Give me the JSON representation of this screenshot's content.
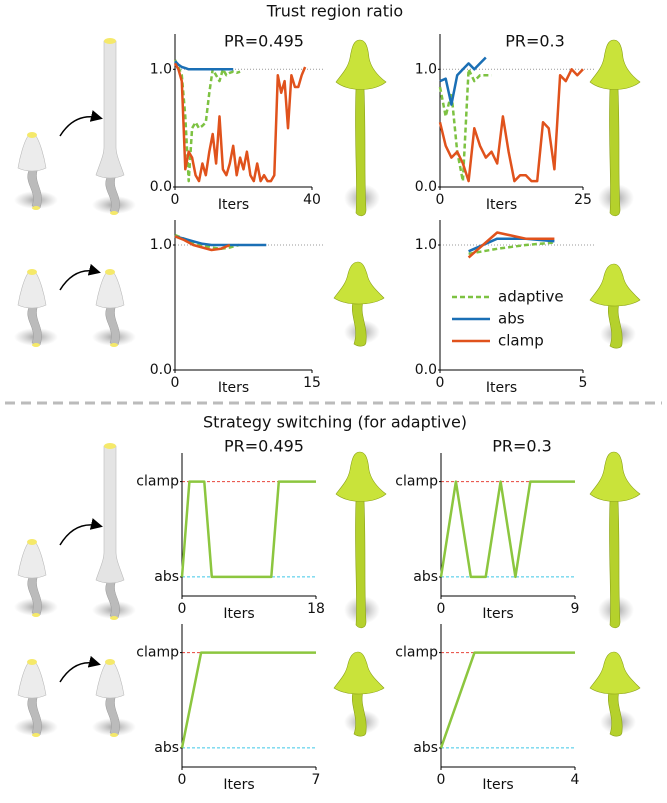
{
  "sections": [
    "Trust region ratio",
    "Strategy switching (for adaptive)"
  ],
  "chart_data": [
    {
      "type": "line",
      "title": "PR=0.495",
      "x_label": "Iters",
      "xlim": [
        0,
        40
      ],
      "xticks": [
        0,
        40
      ],
      "ylim": [
        0,
        1.3
      ],
      "yticks": [
        {
          "value": 0,
          "label": "0.0"
        },
        {
          "value": 1,
          "label": "1.0"
        }
      ],
      "ref_line": 1,
      "series": [
        {
          "style": "dashed",
          "color": "#7dc242",
          "x": [
            0,
            1,
            2,
            3,
            4,
            5,
            6,
            7,
            8,
            9,
            10,
            11,
            12,
            13,
            14,
            15,
            16,
            17,
            18,
            19
          ],
          "values": [
            1.08,
            1.02,
            0.95,
            0.6,
            0.05,
            0.5,
            0.55,
            0.5,
            0.52,
            0.55,
            0.8,
            1.0,
            0.95,
            0.9,
            1.0,
            0.95,
            0.97,
            0.98,
            0.97,
            0.98
          ]
        },
        {
          "style": "solid",
          "color": "#1a6fb5",
          "x": [
            0,
            1,
            2,
            3,
            4,
            5,
            6,
            7,
            8,
            9,
            10,
            11,
            12,
            13,
            14,
            15,
            16,
            17
          ],
          "values": [
            1.07,
            1.04,
            1.02,
            1.01,
            1.0,
            1.0,
            1.0,
            1.0,
            1.0,
            1.0,
            1.0,
            1.0,
            1.0,
            1.0,
            1.0,
            1.0,
            1.0,
            1.0
          ]
        },
        {
          "style": "solid",
          "color": "#e0521c",
          "x": [
            0,
            1,
            2,
            3,
            4,
            5,
            6,
            7,
            8,
            9,
            10,
            11,
            12,
            13,
            14,
            15,
            16,
            17,
            18,
            19,
            20,
            21,
            22,
            23,
            24,
            25,
            26,
            27,
            28,
            29,
            30,
            31,
            32,
            33,
            34,
            35,
            36,
            37,
            38
          ],
          "values": [
            1.05,
            1.0,
            0.9,
            0.15,
            0.3,
            0.25,
            0.1,
            0.05,
            0.2,
            0.1,
            0.3,
            0.45,
            0.2,
            0.6,
            0.15,
            0.1,
            0.2,
            0.35,
            0.1,
            0.25,
            0.15,
            0.3,
            0.1,
            0.05,
            0.2,
            0.05,
            0.1,
            0.05,
            0.05,
            0.1,
            0.95,
            0.8,
            0.9,
            0.5,
            0.95,
            0.85,
            0.85,
            0.95,
            1.02
          ]
        }
      ]
    },
    {
      "type": "line",
      "title": "PR=0.3",
      "x_label": "Iters",
      "xlim": [
        0,
        25
      ],
      "xticks": [
        0,
        25
      ],
      "ylim": [
        0,
        1.3
      ],
      "yticks": [
        {
          "value": 0,
          "label": "0.0"
        },
        {
          "value": 1,
          "label": "1.0"
        }
      ],
      "ref_line": 1,
      "series": [
        {
          "style": "dashed",
          "color": "#7dc242",
          "x": [
            0,
            1,
            2,
            3,
            4,
            5,
            6,
            7,
            8,
            9
          ],
          "values": [
            0.85,
            0.6,
            0.8,
            0.3,
            0.05,
            1.0,
            0.9,
            0.95,
            0.95,
            0.95
          ]
        },
        {
          "style": "solid",
          "color": "#1a6fb5",
          "x": [
            0,
            1,
            2,
            3,
            4,
            5,
            6,
            7,
            8
          ],
          "values": [
            0.9,
            0.92,
            0.7,
            0.95,
            1.0,
            1.05,
            1.0,
            1.05,
            1.1
          ]
        },
        {
          "style": "solid",
          "color": "#e0521c",
          "x": [
            0,
            1,
            2,
            3,
            4,
            5,
            6,
            7,
            8,
            9,
            10,
            11,
            12,
            13,
            14,
            15,
            16,
            17,
            18,
            19,
            20,
            21,
            22,
            23,
            24,
            25
          ],
          "values": [
            0.55,
            0.35,
            0.25,
            0.3,
            0.2,
            0.05,
            0.5,
            0.35,
            0.25,
            0.3,
            0.2,
            0.6,
            0.3,
            0.05,
            0.1,
            0.1,
            0.05,
            0.05,
            0.55,
            0.5,
            0.15,
            0.95,
            0.9,
            1.0,
            0.95,
            1.0
          ]
        }
      ]
    },
    {
      "type": "line",
      "x_label": "Iters",
      "xlim": [
        0,
        15
      ],
      "xticks": [
        0,
        15
      ],
      "ylim": [
        0,
        1.2
      ],
      "yticks": [
        {
          "value": 0,
          "label": "0.0"
        },
        {
          "value": 1,
          "label": "1.0"
        }
      ],
      "ref_line": 1,
      "series": [
        {
          "style": "dashed",
          "color": "#7dc242",
          "x": [
            0,
            1,
            2,
            3,
            4,
            5,
            6,
            7
          ],
          "values": [
            1.08,
            1.05,
            1.02,
            1.0,
            0.98,
            0.97,
            0.98,
            1.0
          ]
        },
        {
          "style": "solid",
          "color": "#1a6fb5",
          "x": [
            0,
            1,
            2,
            3,
            4,
            5,
            6,
            7,
            8,
            9,
            10
          ],
          "values": [
            1.07,
            1.05,
            1.03,
            1.01,
            1.0,
            1.0,
            1.0,
            1.0,
            1.0,
            1.0,
            1.0
          ]
        },
        {
          "style": "solid",
          "color": "#e0521c",
          "x": [
            0,
            1,
            2,
            3,
            4,
            5,
            6
          ],
          "values": [
            1.07,
            1.04,
            1.0,
            0.98,
            0.96,
            0.97,
            1.0
          ]
        }
      ]
    },
    {
      "type": "line",
      "x_label": "Iters",
      "xlim": [
        0,
        5
      ],
      "xticks": [
        0,
        5
      ],
      "ylim": [
        0,
        1.2
      ],
      "yticks": [
        {
          "value": 0,
          "label": "0.0"
        },
        {
          "value": 1,
          "label": "1.0"
        }
      ],
      "ref_line": 1,
      "series": [
        {
          "name": "adaptive",
          "style": "dashed",
          "color": "#7dc242",
          "x": [
            1,
            2,
            3,
            4
          ],
          "values": [
            0.93,
            0.97,
            1.0,
            1.02
          ]
        },
        {
          "name": "abs",
          "style": "solid",
          "color": "#1a6fb5",
          "x": [
            1,
            2,
            3,
            4
          ],
          "values": [
            0.95,
            1.05,
            1.05,
            1.03
          ]
        },
        {
          "name": "clamp",
          "style": "solid",
          "color": "#e0521c",
          "x": [
            1,
            2,
            3,
            4
          ],
          "values": [
            0.9,
            1.1,
            1.05,
            1.05
          ]
        }
      ]
    },
    {
      "type": "line",
      "title": "PR=0.495",
      "x_label": "Iters",
      "xlim": [
        0,
        18
      ],
      "xticks": [
        0,
        18
      ],
      "ylim": [
        -0.2,
        1.3
      ],
      "yticks": [
        {
          "value": 1,
          "label": "clamp"
        },
        {
          "value": 0,
          "label": "abs"
        }
      ],
      "guides": [
        "#e8453c",
        "#3cc8e8"
      ],
      "series": [
        {
          "style": "solid",
          "color": "#8cc63f",
          "x": [
            0,
            1,
            2,
            3,
            4,
            5,
            6,
            7,
            8,
            9,
            10,
            11,
            12,
            13,
            14,
            15,
            16,
            17,
            18
          ],
          "values": [
            0,
            1,
            1,
            1,
            0,
            0,
            0,
            0,
            0,
            0,
            0,
            0,
            0,
            1,
            1,
            1,
            1,
            1,
            1
          ]
        }
      ]
    },
    {
      "type": "line",
      "title": "PR=0.3",
      "x_label": "Iters",
      "xlim": [
        0,
        9
      ],
      "xticks": [
        0,
        9
      ],
      "ylim": [
        -0.2,
        1.3
      ],
      "yticks": [
        {
          "value": 1,
          "label": "clamp"
        },
        {
          "value": 0,
          "label": "abs"
        }
      ],
      "guides": [
        "#e8453c",
        "#3cc8e8"
      ],
      "series": [
        {
          "style": "solid",
          "color": "#8cc63f",
          "x": [
            0,
            1,
            2,
            3,
            4,
            5,
            6,
            7,
            8,
            9
          ],
          "values": [
            0,
            1,
            0,
            0,
            1,
            0,
            1,
            1,
            1,
            1
          ]
        }
      ]
    },
    {
      "type": "line",
      "x_label": "Iters",
      "xlim": [
        0,
        7
      ],
      "xticks": [
        0,
        7
      ],
      "ylim": [
        -0.2,
        1.3
      ],
      "yticks": [
        {
          "value": 1,
          "label": "clamp"
        },
        {
          "value": 0,
          "label": "abs"
        }
      ],
      "guides": [
        "#e8453c",
        "#3cc8e8"
      ],
      "series": [
        {
          "style": "solid",
          "color": "#8cc63f",
          "x": [
            0,
            1,
            2,
            3,
            4,
            5,
            6,
            7
          ],
          "values": [
            0,
            1,
            1,
            1,
            1,
            1,
            1,
            1
          ]
        }
      ]
    },
    {
      "type": "line",
      "x_label": "Iters",
      "xlim": [
        0,
        4
      ],
      "xticks": [
        0,
        4
      ],
      "ylim": [
        -0.2,
        1.3
      ],
      "yticks": [
        {
          "value": 1,
          "label": "clamp"
        },
        {
          "value": 0,
          "label": "abs"
        }
      ],
      "guides": [
        "#e8453c",
        "#3cc8e8"
      ],
      "series": [
        {
          "style": "solid",
          "color": "#8cc63f",
          "x": [
            0,
            1,
            2,
            3,
            4
          ],
          "values": [
            0,
            1,
            1,
            1,
            1
          ]
        }
      ]
    }
  ]
}
